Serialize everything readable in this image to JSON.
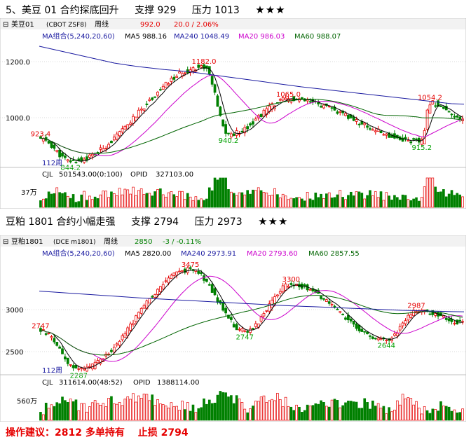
{
  "sections": [
    {
      "heading": {
        "title": "5、美豆 01 合约探底回升",
        "support": "支撑 929",
        "pressure": "压力 1013",
        "rating": "★★★"
      },
      "panel": {
        "symbol": "美豆01",
        "code": "(CBOT ZSF8)",
        "period": "周线",
        "price": "992.0",
        "change": "20.0 / 2.06%",
        "ma_label": "MA组合(5,240,20,60)",
        "ma5": "MA5 988.16",
        "ma240": "MA240 1048.49",
        "ma20": "MA20 986.03",
        "ma60": "MA60 988.07",
        "bars_label": "112周",
        "vol_label": "CJL",
        "vol_value": "501543.00(0:100)",
        "opid_label": "OPID",
        "opid_value": "327103.00",
        "vol_axis": "37万"
      },
      "chart_data": {
        "type": "candlestick",
        "ylim": [
          830,
          1270
        ],
        "y_ticks": [
          {
            "value": 1200,
            "label": "1200.0"
          },
          {
            "value": 1000,
            "label": "1000.0"
          }
        ],
        "annotations": [
          {
            "bar": 0,
            "value": 923.4,
            "label": "923.4",
            "color": "#e60000"
          },
          {
            "bar": 11,
            "value": 844.2,
            "label": "844.2",
            "color": "#00a000"
          },
          {
            "bar": 60,
            "value": 1182.0,
            "label": "1182.0",
            "color": "#e60000"
          },
          {
            "bar": 69,
            "value": 940.2,
            "label": "940.2",
            "color": "#00a000"
          },
          {
            "bar": 91,
            "value": 1065.0,
            "label": "1065.0",
            "color": "#e60000"
          },
          {
            "bar": 140,
            "value": 915.2,
            "label": "915.2",
            "color": "#00a000"
          },
          {
            "bar": 143,
            "value": 1054.2,
            "label": "1054.2",
            "color": "#e60000"
          }
        ],
        "ma240": [
          1255,
          1245,
          1235,
          1225,
          1215,
          1205,
          1195,
          1188,
          1182,
          1177,
          1172,
          1168,
          1164,
          1158,
          1152,
          1146,
          1140,
          1134,
          1128,
          1122,
          1116,
          1110,
          1105,
          1100,
          1095,
          1090,
          1085,
          1080,
          1075,
          1070,
          1065,
          1060,
          1055,
          1050,
          1048
        ],
        "series_color": {
          "up": "#e60000",
          "down": "#008000",
          "ma5": "#000000",
          "ma240": "#1a1aa0",
          "ma20": "#cc00cc",
          "ma60": "#006400"
        },
        "volume_max": 100
      }
    },
    {
      "heading": {
        "title": "豆粕 1801 合约小幅走强",
        "support": "支撑 2794",
        "pressure": "压力 2973",
        "rating": "★★★"
      },
      "panel": {
        "symbol": "豆粕1801",
        "code": "(DCE m1801)",
        "period": "周线",
        "price": "2850",
        "change": "-3 / -0.11%",
        "ma_label": "MA组合(5,240,20,60)",
        "ma5": "MA5 2820.00",
        "ma240": "MA240 2973.91",
        "ma20": "MA20 2793.60",
        "ma60": "MA60 2857.55",
        "bars_label": "112周",
        "vol_label": "CJL",
        "vol_value": "311614.00(48:52)",
        "opid_label": "OPID",
        "opid_value": "1388114.00",
        "vol_axis": "560万"
      },
      "chart_data": {
        "type": "candlestick",
        "ylim": [
          2250,
          3600
        ],
        "y_ticks": [
          {
            "value": 3000,
            "label": "3000"
          },
          {
            "value": 2500,
            "label": "2500"
          }
        ],
        "annotations": [
          {
            "bar": 0,
            "value": 2747,
            "label": "2747",
            "color": "#e60000"
          },
          {
            "bar": 14,
            "value": 2287,
            "label": "2287",
            "color": "#00a000"
          },
          {
            "bar": 55,
            "value": 3475,
            "label": "3475",
            "color": "#e60000"
          },
          {
            "bar": 75,
            "value": 2747,
            "label": "2747",
            "color": "#00a000"
          },
          {
            "bar": 92,
            "value": 3300,
            "label": "3300",
            "color": "#e60000"
          },
          {
            "bar": 127,
            "value": 2644,
            "label": "2644",
            "color": "#00a000"
          },
          {
            "bar": 138,
            "value": 2987,
            "label": "2987",
            "color": "#e60000"
          }
        ],
        "ma240": [
          3220,
          3210,
          3200,
          3190,
          3180,
          3170,
          3160,
          3150,
          3140,
          3132,
          3124,
          3116,
          3108,
          3100,
          3092,
          3084,
          3076,
          3068,
          3060,
          3052,
          3046,
          3040,
          3034,
          3028,
          3022,
          3016,
          3010,
          3004,
          2998,
          2992,
          2988,
          2984,
          2980,
          2976,
          2974
        ],
        "series_color": {
          "up": "#e60000",
          "down": "#008000",
          "ma5": "#000000",
          "ma240": "#1a1aa0",
          "ma20": "#cc00cc",
          "ma60": "#006400"
        },
        "volume_max": 100
      }
    }
  ],
  "advice": {
    "label": "操作建议：",
    "price": "2812 多单持有",
    "stop": "止损 2794"
  }
}
